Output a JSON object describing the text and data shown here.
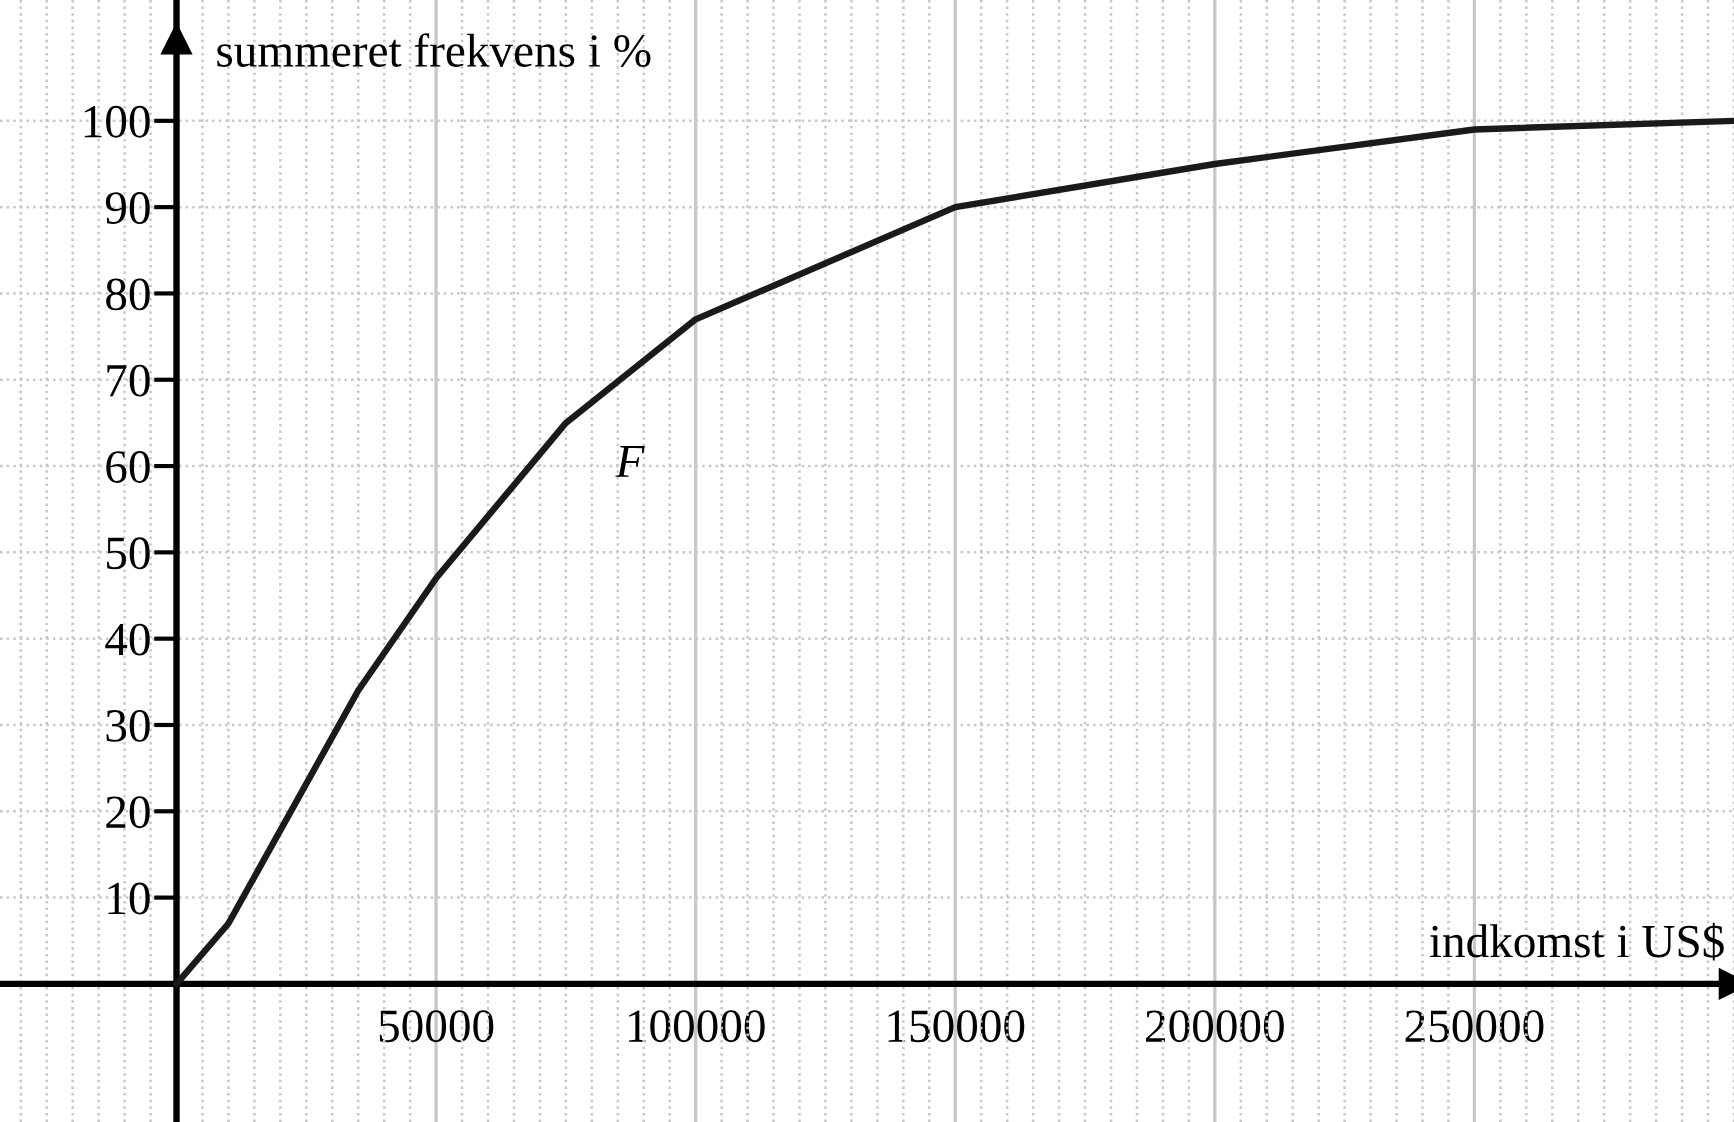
{
  "chart_data": {
    "type": "line",
    "xlabel": "indkomst i US$",
    "ylabel": "summeret frekvens i %",
    "x": [
      0,
      10000,
      35000,
      50000,
      75000,
      100000,
      150000,
      200000,
      250000,
      300000
    ],
    "series": [
      {
        "color": "#1a1a1a",
        "values": [
          0,
          7,
          34,
          47,
          65,
          77,
          90,
          95,
          99,
          100
        ]
      }
    ],
    "xlim": [
      -34000,
      300000
    ],
    "ylim": [
      -16,
      114
    ],
    "xticks": [
      50000,
      100000,
      150000,
      200000,
      250000
    ],
    "yticks": [
      10,
      20,
      30,
      40,
      50,
      60,
      70,
      80,
      90,
      100
    ],
    "grid": true,
    "marker": "none",
    "line_style": "solid",
    "annotations": [
      "F"
    ]
  }
}
